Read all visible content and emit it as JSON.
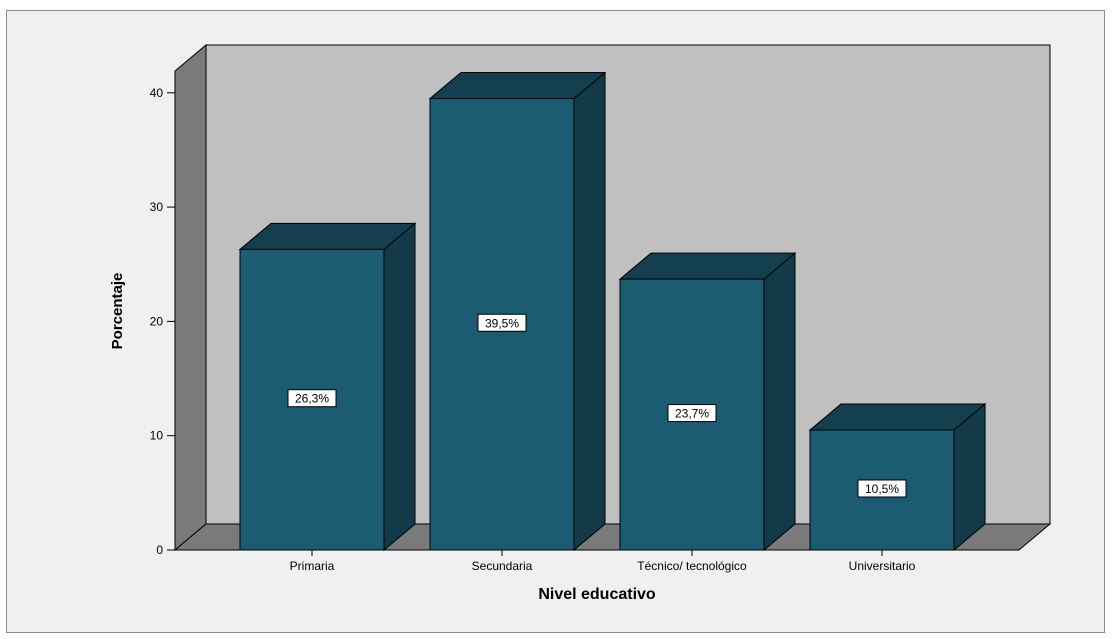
{
  "chart_data": {
    "type": "bar",
    "categories": [
      "Primaria",
      "Secundaria",
      "Técnico/ tecnológico",
      "Universitario"
    ],
    "values": [
      26.3,
      39.5,
      23.7,
      10.5
    ],
    "data_labels": [
      "26,3%",
      "39,5%",
      "23,7%",
      "10,5%"
    ],
    "xlabel": "Nivel educativo",
    "ylabel": "Porcentaje",
    "ylim": [
      0,
      40
    ],
    "yticks": [
      0,
      10,
      20,
      30,
      40
    ],
    "three_d": true,
    "grid": false,
    "colors": {
      "bar_front": "#1c5c73",
      "bar_side": "#123a48",
      "bar_top": "#133f4e",
      "back_wall": "#c0c0c0",
      "side_wall": "#7a7a7a",
      "floor": "#7a7a7a",
      "frame_bg": "#f0f0f0"
    }
  }
}
